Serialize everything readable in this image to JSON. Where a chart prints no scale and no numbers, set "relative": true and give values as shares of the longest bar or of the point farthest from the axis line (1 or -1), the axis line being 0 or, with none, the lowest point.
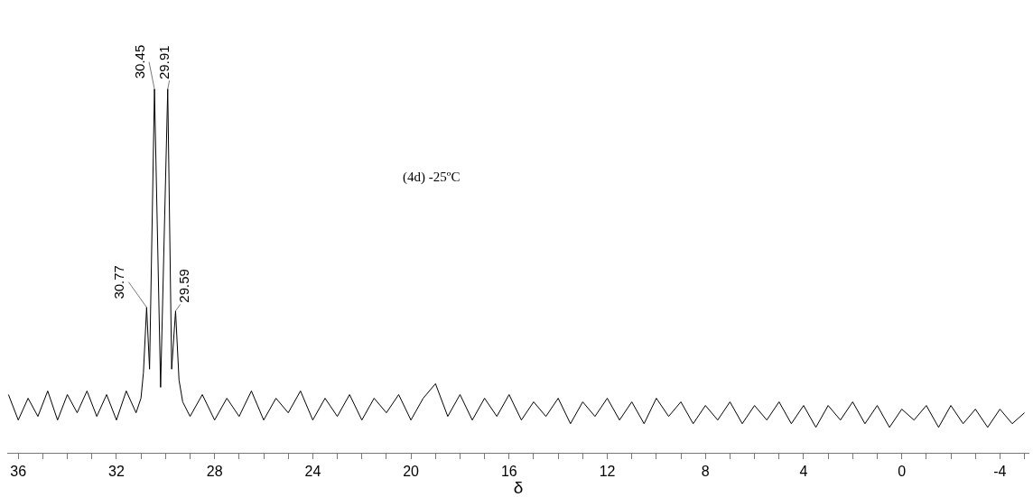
{
  "chart_data": {
    "type": "line",
    "relative": true,
    "xlabel": "δ",
    "color": "#000000",
    "legend": false,
    "marker": "none",
    "line_style": "solid",
    "xlim": [
      36.45,
      -5.2
    ],
    "xticks": [
      36,
      {
        "value": 35,
        "label": null
      },
      {
        "value": 34,
        "label": null
      },
      {
        "value": 33,
        "label": null
      },
      32,
      {
        "value": 31,
        "label": null
      },
      {
        "value": 30,
        "label": null
      },
      {
        "value": 29,
        "label": null
      },
      28,
      {
        "value": 27,
        "label": null
      },
      {
        "value": 26,
        "label": null
      },
      {
        "value": 25,
        "label": null
      },
      24,
      {
        "value": 23,
        "label": null
      },
      {
        "value": 22,
        "label": null
      },
      {
        "value": 21,
        "label": null
      },
      20,
      {
        "value": 19,
        "label": null
      },
      {
        "value": 18,
        "label": null
      },
      {
        "value": 17,
        "label": null
      },
      16,
      {
        "value": 15,
        "label": null
      },
      {
        "value": 14,
        "label": null
      },
      {
        "value": 13,
        "label": null
      },
      12,
      {
        "value": 11,
        "label": null
      },
      {
        "value": 10,
        "label": null
      },
      {
        "value": 9,
        "label": null
      },
      8,
      {
        "value": 7,
        "label": null
      },
      {
        "value": 6,
        "label": null
      },
      {
        "value": 5,
        "label": null
      },
      4,
      {
        "value": 3,
        "label": null
      },
      {
        "value": 2,
        "label": null
      },
      {
        "value": 1,
        "label": null
      },
      0,
      {
        "value": -1,
        "label": null
      },
      {
        "value": -2,
        "label": null
      },
      {
        "value": -3,
        "label": null
      },
      -4,
      {
        "value": -5,
        "label": null
      }
    ],
    "x": [
      36.4,
      36.0,
      35.6,
      35.2,
      34.8,
      34.4,
      34.0,
      33.6,
      33.2,
      32.8,
      32.4,
      32.0,
      31.6,
      31.2,
      31.0,
      30.9,
      30.77,
      30.65,
      30.45,
      30.2,
      29.91,
      29.75,
      29.59,
      29.45,
      29.3,
      29.0,
      28.5,
      28.0,
      27.5,
      27.0,
      26.5,
      26.0,
      25.5,
      25.0,
      24.5,
      24.0,
      23.5,
      23.0,
      22.5,
      22.0,
      21.5,
      21.0,
      20.5,
      20.0,
      19.5,
      19.0,
      18.5,
      18.0,
      17.5,
      17.0,
      16.5,
      16.0,
      15.5,
      15.0,
      14.5,
      14.0,
      13.5,
      13.0,
      12.5,
      12.0,
      11.5,
      11.0,
      10.5,
      10.0,
      9.5,
      9.0,
      8.5,
      8.0,
      7.5,
      7.0,
      6.5,
      6.0,
      5.5,
      5.0,
      4.5,
      4.0,
      3.5,
      3.0,
      2.5,
      2.0,
      1.5,
      1.0,
      0.5,
      0.0,
      -0.5,
      -1.0,
      -1.5,
      -2.0,
      -2.5,
      -3.0,
      -3.5,
      -4.0,
      -4.5,
      -5.0
    ],
    "values": [
      0.16,
      0.09,
      0.15,
      0.1,
      0.17,
      0.09,
      0.16,
      0.11,
      0.17,
      0.1,
      0.16,
      0.09,
      0.17,
      0.11,
      0.15,
      0.22,
      0.4,
      0.23,
      1.0,
      0.18,
      1.0,
      0.23,
      0.39,
      0.2,
      0.14,
      0.1,
      0.16,
      0.09,
      0.15,
      0.1,
      0.17,
      0.09,
      0.15,
      0.11,
      0.17,
      0.09,
      0.15,
      0.1,
      0.16,
      0.09,
      0.15,
      0.11,
      0.16,
      0.09,
      0.15,
      0.19,
      0.1,
      0.16,
      0.09,
      0.15,
      0.1,
      0.16,
      0.09,
      0.14,
      0.1,
      0.15,
      0.08,
      0.14,
      0.1,
      0.15,
      0.09,
      0.14,
      0.08,
      0.15,
      0.1,
      0.14,
      0.08,
      0.13,
      0.09,
      0.14,
      0.08,
      0.13,
      0.09,
      0.14,
      0.08,
      0.13,
      0.07,
      0.13,
      0.09,
      0.14,
      0.08,
      0.13,
      0.07,
      0.12,
      0.09,
      0.13,
      0.07,
      0.13,
      0.08,
      0.12,
      0.07,
      0.12,
      0.08,
      0.11
    ],
    "annotations": [
      {
        "text": "30.77",
        "x": 30.77,
        "y": 0.4
      },
      {
        "text": "30.45",
        "x": 30.45,
        "y": 1.0
      },
      {
        "text": "29.91",
        "x": 29.91,
        "y": 1.0
      },
      {
        "text": "29.59",
        "x": 29.59,
        "y": 0.39
      },
      "(4d) -25ºC"
    ]
  }
}
